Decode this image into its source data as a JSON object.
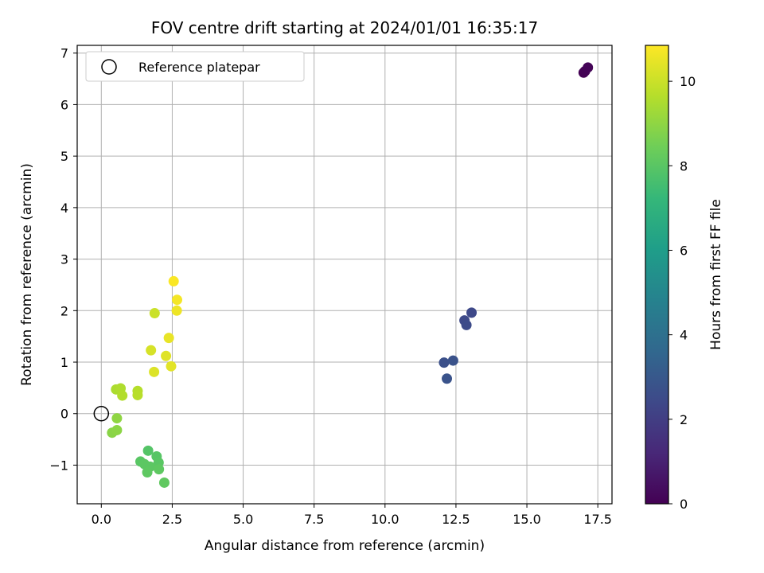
{
  "chart_data": {
    "type": "scatter",
    "title": "FOV centre drift starting at 2024/01/01 16:35:17",
    "xlabel": "Angular distance from reference (arcmin)",
    "ylabel": "Rotation from reference (arcmin)",
    "xlim": [
      -0.85,
      18.0
    ],
    "ylim": [
      -1.75,
      7.15
    ],
    "xticks": [
      0.0,
      2.5,
      5.0,
      7.5,
      10.0,
      12.5,
      15.0,
      17.5
    ],
    "xtick_labels": [
      "0.0",
      "2.5",
      "5.0",
      "7.5",
      "10.0",
      "12.5",
      "15.0",
      "17.5"
    ],
    "yticks": [
      -1,
      0,
      1,
      2,
      3,
      4,
      5,
      6,
      7
    ],
    "ytick_labels": [
      "−1",
      "0",
      "1",
      "2",
      "3",
      "4",
      "5",
      "6",
      "7"
    ],
    "grid": true,
    "legend_position": "top-left",
    "legend": [
      {
        "label": "Reference platepar",
        "marker": "open-circle"
      }
    ],
    "colorbar": {
      "label": "Hours from first FF file",
      "colormap": "viridis",
      "range": [
        0,
        10.85
      ],
      "ticks": [
        0,
        2,
        4,
        6,
        8,
        10
      ],
      "tick_labels": [
        "0",
        "2",
        "4",
        "6",
        "8",
        "10"
      ],
      "colors": [
        "#440154",
        "#482878",
        "#3e4989",
        "#31688e",
        "#26828e",
        "#1f9e89",
        "#35b779",
        "#6ece58",
        "#b5de2b",
        "#fde725"
      ]
    },
    "reference_point": {
      "x": 0.0,
      "y": 0.0
    },
    "points": [
      {
        "x": 17.0,
        "y": 6.62,
        "hours": 0.0
      },
      {
        "x": 17.05,
        "y": 6.65,
        "hours": 0.05
      },
      {
        "x": 17.15,
        "y": 6.72,
        "hours": 0.1
      },
      {
        "x": 13.05,
        "y": 1.96,
        "hours": 2.4
      },
      {
        "x": 12.8,
        "y": 1.81,
        "hours": 2.45
      },
      {
        "x": 12.87,
        "y": 1.72,
        "hours": 2.5
      },
      {
        "x": 12.08,
        "y": 0.99,
        "hours": 2.7
      },
      {
        "x": 12.4,
        "y": 1.03,
        "hours": 2.75
      },
      {
        "x": 12.18,
        "y": 0.68,
        "hours": 2.8
      },
      {
        "x": 1.65,
        "y": -0.72,
        "hours": 7.9
      },
      {
        "x": 1.95,
        "y": -0.83,
        "hours": 7.95
      },
      {
        "x": 2.02,
        "y": -0.95,
        "hours": 8.0
      },
      {
        "x": 1.38,
        "y": -0.93,
        "hours": 8.0
      },
      {
        "x": 1.52,
        "y": -0.98,
        "hours": 8.05
      },
      {
        "x": 1.72,
        "y": -1.03,
        "hours": 8.05
      },
      {
        "x": 2.03,
        "y": -1.08,
        "hours": 8.1
      },
      {
        "x": 1.62,
        "y": -1.14,
        "hours": 8.1
      },
      {
        "x": 2.22,
        "y": -1.34,
        "hours": 8.15
      },
      {
        "x": 0.38,
        "y": -0.37,
        "hours": 8.9
      },
      {
        "x": 0.55,
        "y": -0.32,
        "hours": 8.95
      },
      {
        "x": 0.55,
        "y": -0.09,
        "hours": 9.0
      },
      {
        "x": 0.52,
        "y": 0.47,
        "hours": 9.5
      },
      {
        "x": 0.68,
        "y": 0.49,
        "hours": 9.55
      },
      {
        "x": 0.74,
        "y": 0.35,
        "hours": 9.6
      },
      {
        "x": 1.28,
        "y": 0.44,
        "hours": 9.65
      },
      {
        "x": 1.28,
        "y": 0.36,
        "hours": 9.7
      },
      {
        "x": 1.88,
        "y": 1.95,
        "hours": 10.0
      },
      {
        "x": 1.75,
        "y": 1.23,
        "hours": 10.2
      },
      {
        "x": 1.86,
        "y": 0.81,
        "hours": 10.3
      },
      {
        "x": 2.28,
        "y": 1.12,
        "hours": 10.35
      },
      {
        "x": 2.46,
        "y": 0.92,
        "hours": 10.4
      },
      {
        "x": 2.38,
        "y": 1.47,
        "hours": 10.5
      },
      {
        "x": 2.66,
        "y": 2.0,
        "hours": 10.6
      },
      {
        "x": 2.67,
        "y": 2.21,
        "hours": 10.7
      },
      {
        "x": 2.55,
        "y": 2.57,
        "hours": 10.8
      }
    ]
  }
}
